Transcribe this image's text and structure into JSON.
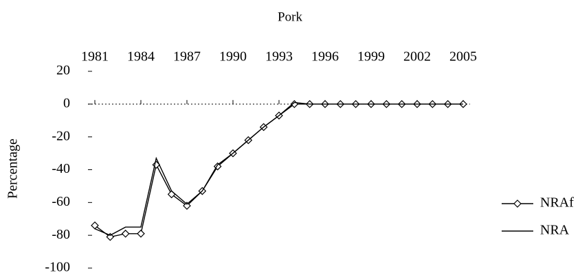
{
  "chart_data": {
    "type": "line",
    "title": "Pork",
    "y_label": "Percentage",
    "x": [
      1981,
      1982,
      1983,
      1984,
      1985,
      1986,
      1987,
      1988,
      1989,
      1990,
      1991,
      1992,
      1993,
      1994,
      1995,
      1996,
      1997,
      1998,
      1999,
      2000,
      2001,
      2002,
      2003,
      2004,
      2005
    ],
    "series": [
      {
        "name": "NRAf",
        "color": "#000000",
        "marker": "diamond",
        "values": [
          -74,
          -81,
          -79,
          -79,
          -37,
          -55,
          -62,
          -53,
          -38,
          -30,
          -22,
          -14,
          -7,
          0,
          0,
          0,
          0,
          0,
          0,
          0,
          0,
          0,
          0,
          0,
          0
        ]
      },
      {
        "name": "NRA",
        "color": "#000000",
        "marker": "none",
        "values": [
          -76,
          -80,
          -75,
          -75,
          -33,
          -53,
          -61,
          -53,
          -37,
          -30,
          -22,
          -14,
          -7,
          1,
          0,
          0,
          0,
          0,
          0,
          0,
          0,
          0,
          0,
          0,
          0
        ]
      }
    ],
    "xlim": [
      1981,
      2005
    ],
    "xticks": [
      1981,
      1984,
      1987,
      1990,
      1993,
      1996,
      1999,
      2002,
      2005
    ],
    "ylim": [
      -100,
      20
    ],
    "yticks": [
      -100,
      -80,
      -60,
      -40,
      -20,
      0,
      20
    ],
    "legend": "right"
  }
}
